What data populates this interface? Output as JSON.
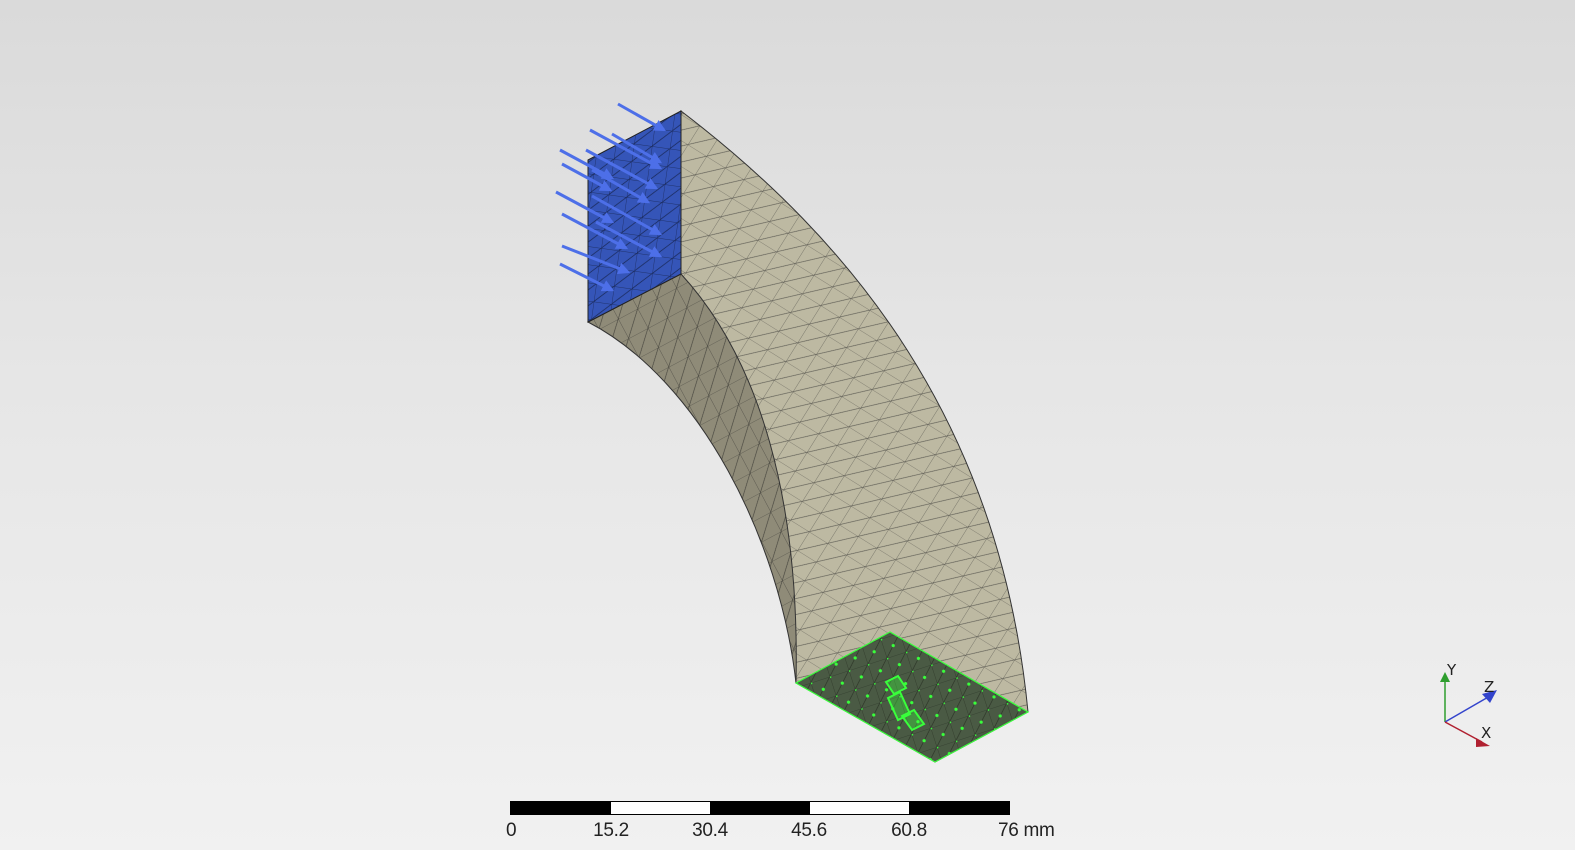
{
  "viewer": {
    "colors": {
      "load_face": "#3555b8",
      "load_arrow": "#4d6fe8",
      "fixed_face": "#4a5a44",
      "fixed_marker": "#39ff3b",
      "outer_face": "#bdb9a2",
      "inner_face": "#8f8b78",
      "mesh_line": "#222222"
    }
  },
  "scale_bar": {
    "labels": [
      "0",
      "15.2",
      "30.4",
      "45.6",
      "60.8",
      "76 mm"
    ]
  },
  "triad": {
    "y_label": "Y",
    "z_label": "Z",
    "x_label": "X",
    "y_color": "#2e9e2e",
    "z_color": "#3344cc",
    "x_color": "#b02030"
  }
}
